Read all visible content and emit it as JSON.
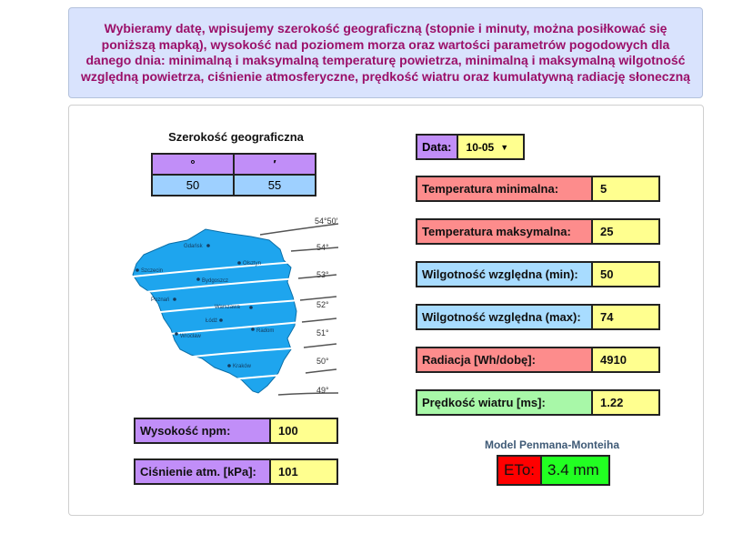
{
  "intro_text": "Wybieramy datę, wpisujemy szerokość geograficzną (stopnie i minuty, można posiłkować się poniższą mapką), wysokość nad poziomem morza oraz wartości parametrów pogodowych dla danego dnia: minimalną i maksymalną temperaturę powietrza, minimalną i maksymalną wilgotność względną powietrza, ciśnienie atmosferyczne, prędkość wiatru oraz kumulatywną radiację słoneczną",
  "latitude": {
    "title": "Szerokość geograficzna",
    "deg_symbol": "°",
    "min_symbol": "′",
    "degrees": "50",
    "minutes": "55"
  },
  "map": {
    "latitude_labels": [
      "54°50′",
      "54°",
      "53°",
      "52°",
      "51°",
      "50°",
      "49°"
    ],
    "cities": [
      "Gdańsk",
      "Olsztyn",
      "Szczecin",
      "Bydgoszcz",
      "Poznań",
      "Warszawa",
      "Łódź",
      "Radom",
      "Wrocław",
      "Kraków"
    ],
    "land_color": "#1ea5ee"
  },
  "date": {
    "label": "Data:",
    "value": "10-05"
  },
  "params": {
    "tmin": {
      "label": "Temperatura minimalna:",
      "value": "5"
    },
    "tmax": {
      "label": "Temperatura maksymalna:",
      "value": "25"
    },
    "rhmin": {
      "label": "Wilgotność względna (min):",
      "value": "50"
    },
    "rhmax": {
      "label": "Wilgotność względna (max):",
      "value": "74"
    },
    "radiation": {
      "label": "Radiacja [Wh/dobę]:",
      "value": "4910"
    },
    "wind": {
      "label": "Prędkość wiatru [ms]:",
      "value": "1.22"
    },
    "altitude": {
      "label": "Wysokość npm:",
      "value": "100"
    },
    "pressure": {
      "label": "Ciśnienie atm. [kPa]:",
      "value": "101"
    }
  },
  "result": {
    "model_title": "Model Penmana-Monteiha",
    "eto_label": "ETo:",
    "eto_value": "3.4 mm"
  },
  "colors": {
    "intro_bg": "#d9e3fd",
    "intro_text": "#9b1069",
    "purple": "#c18ef8",
    "red": "#fd8c8c",
    "blue": "#a8dcff",
    "green": "#a8f8a8",
    "yellow": "#ffff8f",
    "eto_label": "#ff0000",
    "eto_value": "#22ff22"
  }
}
